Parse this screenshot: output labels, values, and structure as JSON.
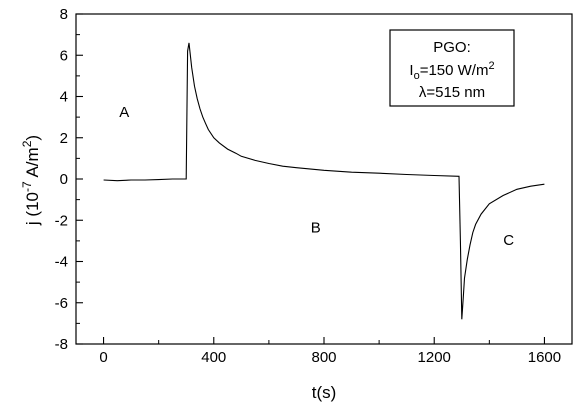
{
  "chart_data": {
    "type": "line",
    "xlabel": "t(s)",
    "ylabel_main": "j (10",
    "ylabel_exp": "-7",
    "ylabel_unit": " A/m",
    "ylabel_unit_exp": "2",
    "ylabel_close": ")",
    "xlim": [
      -100,
      1700
    ],
    "ylim": [
      -8,
      8
    ],
    "xticks": [
      0,
      400,
      800,
      1200,
      1600
    ],
    "xtick_labels": [
      "0",
      "400",
      "800",
      "1200",
      "1600"
    ],
    "yticks": [
      -8,
      -6,
      -4,
      -2,
      0,
      2,
      4,
      6,
      8
    ],
    "ytick_labels": [
      "-8",
      "-6",
      "-4",
      "-2",
      "0",
      "2",
      "4",
      "6",
      "8"
    ],
    "grid": false,
    "line_color": "#000000",
    "series": [
      {
        "x": [
          0,
          50,
          100,
          150,
          200,
          250,
          300,
          305,
          310,
          320,
          330,
          340,
          350,
          360,
          370,
          380,
          400,
          420,
          450,
          480,
          500,
          550,
          600,
          650,
          700,
          800,
          900,
          1000,
          1100,
          1200,
          1290,
          1295,
          1300,
          1305,
          1310,
          1320,
          1330,
          1340,
          1350,
          1370,
          1400,
          1450,
          1500,
          1550,
          1600
        ],
        "y": [
          -0.05,
          -0.08,
          -0.05,
          -0.05,
          -0.03,
          0.0,
          0.0,
          6.2,
          6.6,
          5.4,
          4.5,
          3.9,
          3.4,
          3.0,
          2.7,
          2.4,
          2.0,
          1.75,
          1.45,
          1.25,
          1.1,
          0.9,
          0.75,
          0.62,
          0.55,
          0.42,
          0.33,
          0.28,
          0.22,
          0.17,
          0.13,
          -3.0,
          -6.8,
          -5.8,
          -4.8,
          -3.9,
          -3.2,
          -2.6,
          -2.2,
          -1.7,
          -1.2,
          -0.8,
          -0.5,
          -0.35,
          -0.25
        ]
      }
    ],
    "annotations": [
      {
        "text": "A",
        "x": 75,
        "y": 3.0
      },
      {
        "text": "B",
        "x": 770,
        "y": -2.6
      },
      {
        "text": "C",
        "x": 1470,
        "y": -3.2
      }
    ],
    "legend_box": {
      "placement": "top-right",
      "line1": "PGO:",
      "line2_main": "I",
      "line2_sub": "o",
      "line2_rest": "=150 W/m",
      "line2_sup": "2",
      "line3": "λ=515 nm"
    }
  }
}
